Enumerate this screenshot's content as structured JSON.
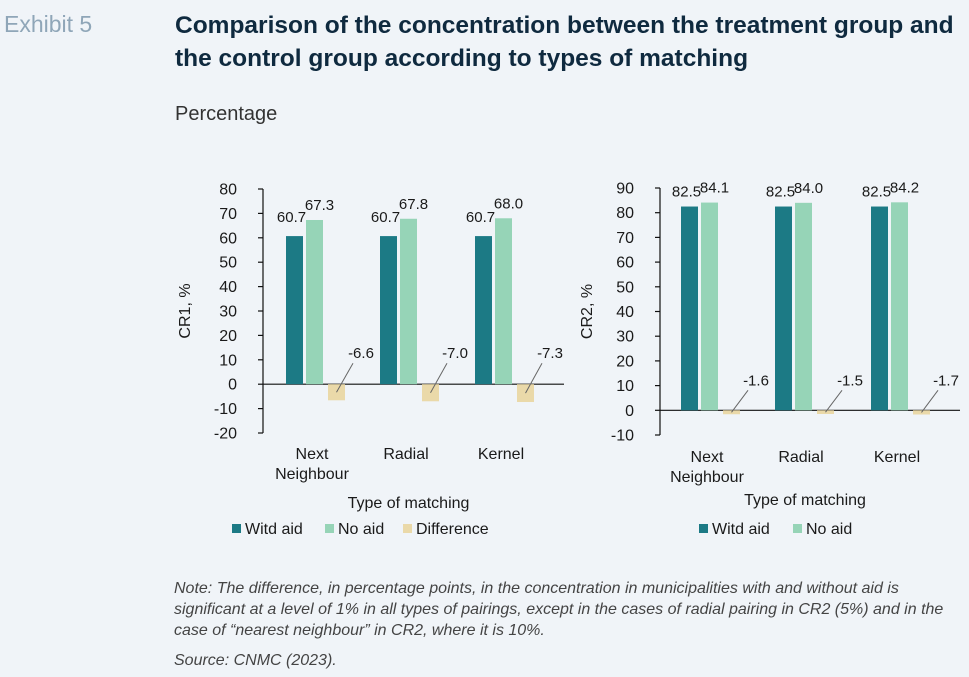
{
  "header": {
    "exhibit": "Exhibit 5",
    "title": "Comparison of the concentration between the treatment group and the control group according to types of matching",
    "subtitle": "Percentage"
  },
  "colors": {
    "with_aid": "#1c7a85",
    "no_aid": "#96d4b7",
    "difference": "#ead9a9"
  },
  "chart_data": [
    {
      "type": "bar",
      "ylabel": "CR1, %",
      "xlabel": "Type of matching",
      "ylim": [
        -20,
        80
      ],
      "yticks": [
        -20,
        -10,
        0,
        10,
        20,
        30,
        40,
        50,
        60,
        70,
        80
      ],
      "categories": [
        "Next Neighbour",
        "Radial",
        "Kernel"
      ],
      "series": [
        {
          "name": "Witd aid",
          "values": [
            60.7,
            60.7,
            60.7
          ],
          "labels": [
            "60.7",
            "60.7",
            "60.7"
          ]
        },
        {
          "name": "No aid",
          "values": [
            67.3,
            67.8,
            68.0
          ],
          "labels": [
            "67.3",
            "67.8",
            "68.0"
          ]
        },
        {
          "name": "Difference",
          "values": [
            -6.6,
            -7.0,
            -7.3
          ],
          "labels": [
            "-6.6",
            "-7.0",
            "-7.3"
          ]
        }
      ],
      "legend_position": "bottom"
    },
    {
      "type": "bar",
      "ylabel": "CR2, %",
      "xlabel": "Type of matching",
      "ylim": [
        -10,
        90
      ],
      "yticks": [
        -10,
        0,
        10,
        20,
        30,
        40,
        50,
        60,
        70,
        80,
        90
      ],
      "categories": [
        "Next Neighbour",
        "Radial",
        "Kernel"
      ],
      "series": [
        {
          "name": "Witd aid",
          "values": [
            82.5,
            82.5,
            82.5
          ],
          "labels": [
            "82.5",
            "82.5",
            "82.5"
          ]
        },
        {
          "name": "No aid",
          "values": [
            84.1,
            84.0,
            84.2
          ],
          "labels": [
            "84.1",
            "84.0",
            "84.2"
          ]
        },
        {
          "values": [
            -1.6,
            -1.5,
            -1.7
          ],
          "labels": [
            "-1.6",
            "-1.5",
            "-1.7"
          ]
        }
      ],
      "legend_position": "bottom"
    }
  ],
  "footer": {
    "note": "Note: The difference, in percentage points, in the concentration in municipalities with and without aid is significant at a level of 1% in all types of pairings, except in the cases of radial pairing in CR2 (5%) and in the case of “nearest neighbour” in CR2, where it is 10%.",
    "source": "Source: CNMC (2023)."
  }
}
